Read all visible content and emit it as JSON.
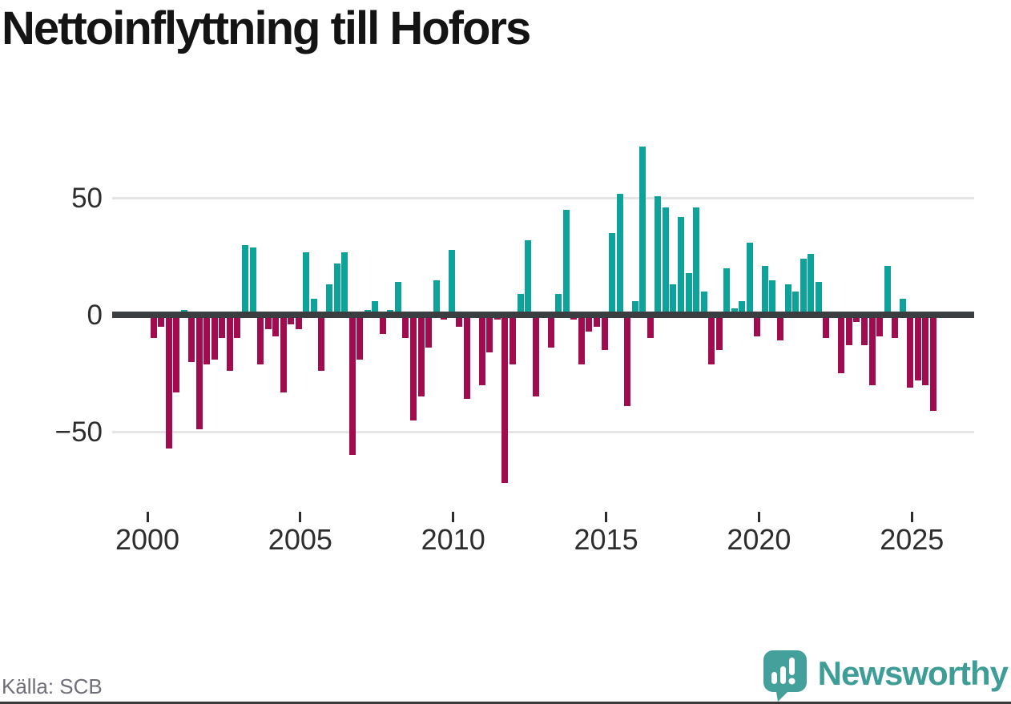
{
  "page": {
    "source_label": "Källa: SCB"
  },
  "logo": {
    "brand": "Newsworthy",
    "icon": "speech-bubble-bar-chart-icon",
    "color": "#3f9d97"
  },
  "colors": {
    "positive_bar": "#0da29a",
    "negative_bar": "#a00c4e",
    "zero_line": "#3a3e40",
    "gridline": "#e4e4e4",
    "text_dark": "#2d2d2d",
    "text_muted": "#6e6e78"
  },
  "chart_data": {
    "type": "bar",
    "title": "Nettoinflyttning till Hofors",
    "frequency": "quarterly",
    "start_period": "2000Q1",
    "end_period": "2025Q3",
    "values": [
      -10,
      -5,
      -57,
      -33,
      2,
      -20,
      -49,
      -21,
      -19,
      -10,
      -24,
      -10,
      30,
      29,
      -21,
      -6,
      -9,
      -33,
      -4,
      -6,
      27,
      7,
      -24,
      13,
      22,
      27,
      -60,
      -19,
      2,
      6,
      -8,
      2,
      14,
      -10,
      -45,
      -35,
      -14,
      15,
      -2,
      28,
      -5,
      -36,
      1,
      -30,
      -16,
      -2,
      -72,
      -21,
      9,
      32,
      -35,
      -1,
      -14,
      9,
      45,
      -2,
      -21,
      -7,
      -5,
      -15,
      35,
      52,
      -39,
      6,
      72,
      -10,
      51,
      46,
      13,
      42,
      18,
      46,
      10,
      -21,
      -15,
      20,
      3,
      6,
      31,
      -9,
      21,
      15,
      -11,
      13,
      10,
      24,
      26,
      14,
      -10,
      0,
      -25,
      -13,
      -3,
      -13,
      -30,
      -9,
      21,
      -10,
      7,
      -31,
      -28,
      -30,
      -41
    ],
    "xlabel": "",
    "ylabel": "",
    "xticks": [
      2000,
      2005,
      2010,
      2015,
      2020,
      2025
    ],
    "ytick_labels": [
      "50",
      "0",
      "−50"
    ],
    "yticks": [
      50,
      0,
      -50
    ],
    "ylim": [
      -75,
      80
    ],
    "grid": "horizontal only",
    "legend": "none",
    "positive_color": "#0da29a",
    "negative_color": "#a00c4e",
    "source": "Källa: SCB"
  }
}
